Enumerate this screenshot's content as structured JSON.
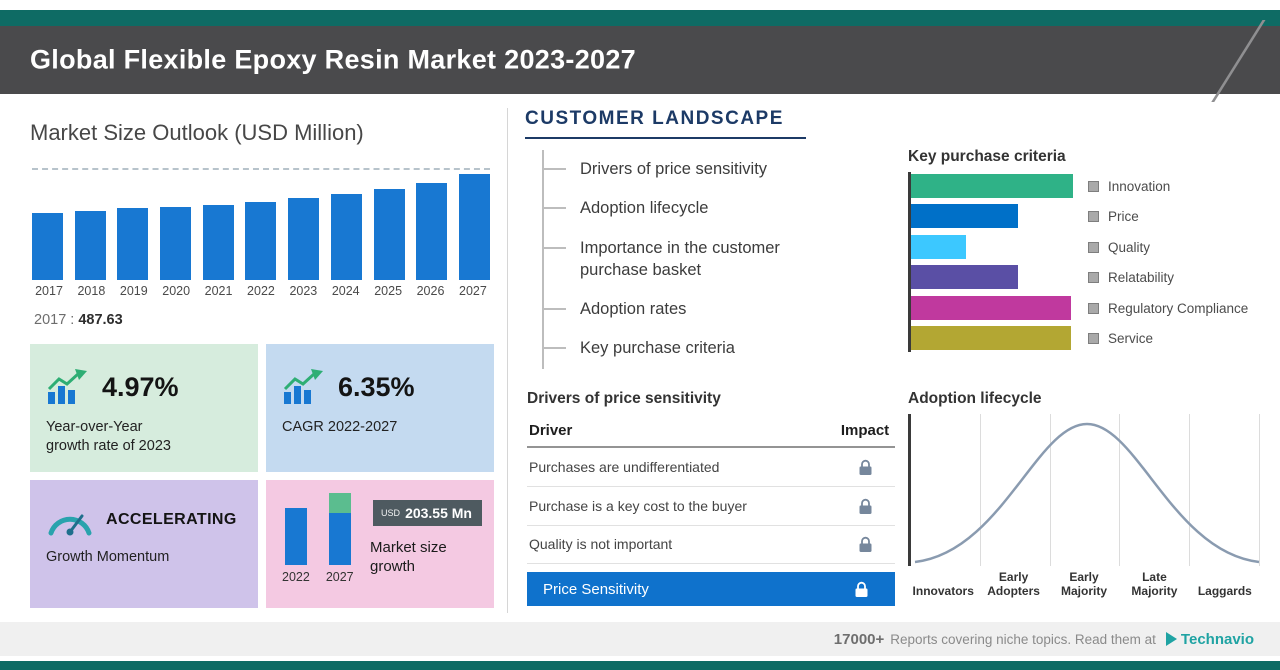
{
  "header": {
    "title": "Global Flexible Epoxy Resin Market 2023-2027"
  },
  "market_outlook": {
    "note_label": "2017 :",
    "note_value": "487.63"
  },
  "cards": {
    "yoy": {
      "value": "4.97%",
      "label": "Year-over-Year growth rate of 2023"
    },
    "cagr": {
      "value": "6.35%",
      "label": "CAGR 2022-2027"
    },
    "momentum": {
      "title": "ACCELERATING",
      "label": "Growth Momentum"
    },
    "growth": {
      "badge_unit": "USD",
      "badge_value": "203.55 Mn",
      "label": "Market size growth"
    }
  },
  "customer_landscape": {
    "title": "CUSTOMER LANDSCAPE",
    "items": [
      "Drivers of price sensitivity",
      "Adoption lifecycle",
      "Importance in the customer purchase basket",
      "Adoption rates",
      "Key purchase criteria"
    ]
  },
  "drivers": {
    "title": "Drivers of price sensitivity",
    "columns": {
      "driver": "Driver",
      "impact": "Impact"
    },
    "rows": [
      "Purchases are undifferentiated",
      "Purchase is a key cost to the buyer",
      "Quality is not important"
    ],
    "highlight": "Price Sensitivity"
  },
  "adoption": {
    "title": "Adoption lifecycle",
    "stages": [
      "Innovators",
      "Early Adopters",
      "Early Majority",
      "Late Majority",
      "Laggards"
    ]
  },
  "footer": {
    "count": "17000+",
    "text": "Reports covering niche topics. Read them at",
    "brand": "Technavio"
  },
  "colors": {
    "brand_teal": "#0e6b64",
    "header_gray": "#4a4a4c",
    "bar_blue": "#1878d2",
    "highlight_blue": "#0f72cc",
    "navy": "#1c3a66",
    "card_green": "#d6ecdd",
    "card_blue": "#c4daf0",
    "card_purple": "#cfc3ea",
    "card_pink": "#f4c9e2"
  },
  "chart_data": [
    {
      "type": "bar",
      "title": "Market Size Outlook (USD Million)",
      "categories": [
        "2017",
        "2018",
        "2019",
        "2020",
        "2021",
        "2022",
        "2023",
        "2024",
        "2025",
        "2026",
        "2027"
      ],
      "values": [
        487.63,
        504,
        520,
        534,
        549,
        565,
        593,
        625,
        662,
        708,
        768
      ],
      "ylim": [
        0,
        800
      ],
      "xlabel": "",
      "ylabel": "USD Million",
      "note": "Only 2017 value (487.63) is labeled on screen; other bar values estimated from bar heights"
    },
    {
      "type": "bar",
      "orientation": "horizontal",
      "title": "Key purchase criteria",
      "categories": [
        "Innovation",
        "Price",
        "Quality",
        "Relatability",
        "Regulatory Compliance",
        "Service"
      ],
      "values": [
        100,
        66,
        34,
        66,
        99,
        99
      ],
      "colors": [
        "#2fb287",
        "#0070c8",
        "#3cc8ff",
        "#5a4fa5",
        "#c0399e",
        "#b3a733"
      ],
      "legend_position": "right",
      "note": "No numeric axis shown; values are relative bar lengths"
    },
    {
      "type": "bar",
      "title": "Market size growth",
      "categories": [
        "2022",
        "2027"
      ],
      "values": [
        565,
        768
      ],
      "growth_label": "USD 203.55 Mn",
      "note": "Growth of USD 203.55 Mn between 2022 and 2027 shown as green stacked segment"
    },
    {
      "type": "line",
      "title": "Adoption lifecycle",
      "categories": [
        "Innovators",
        "Early Adopters",
        "Early Majority",
        "Late Majority",
        "Laggards"
      ],
      "note": "Stylized bell curve, no numeric axis shown"
    }
  ]
}
